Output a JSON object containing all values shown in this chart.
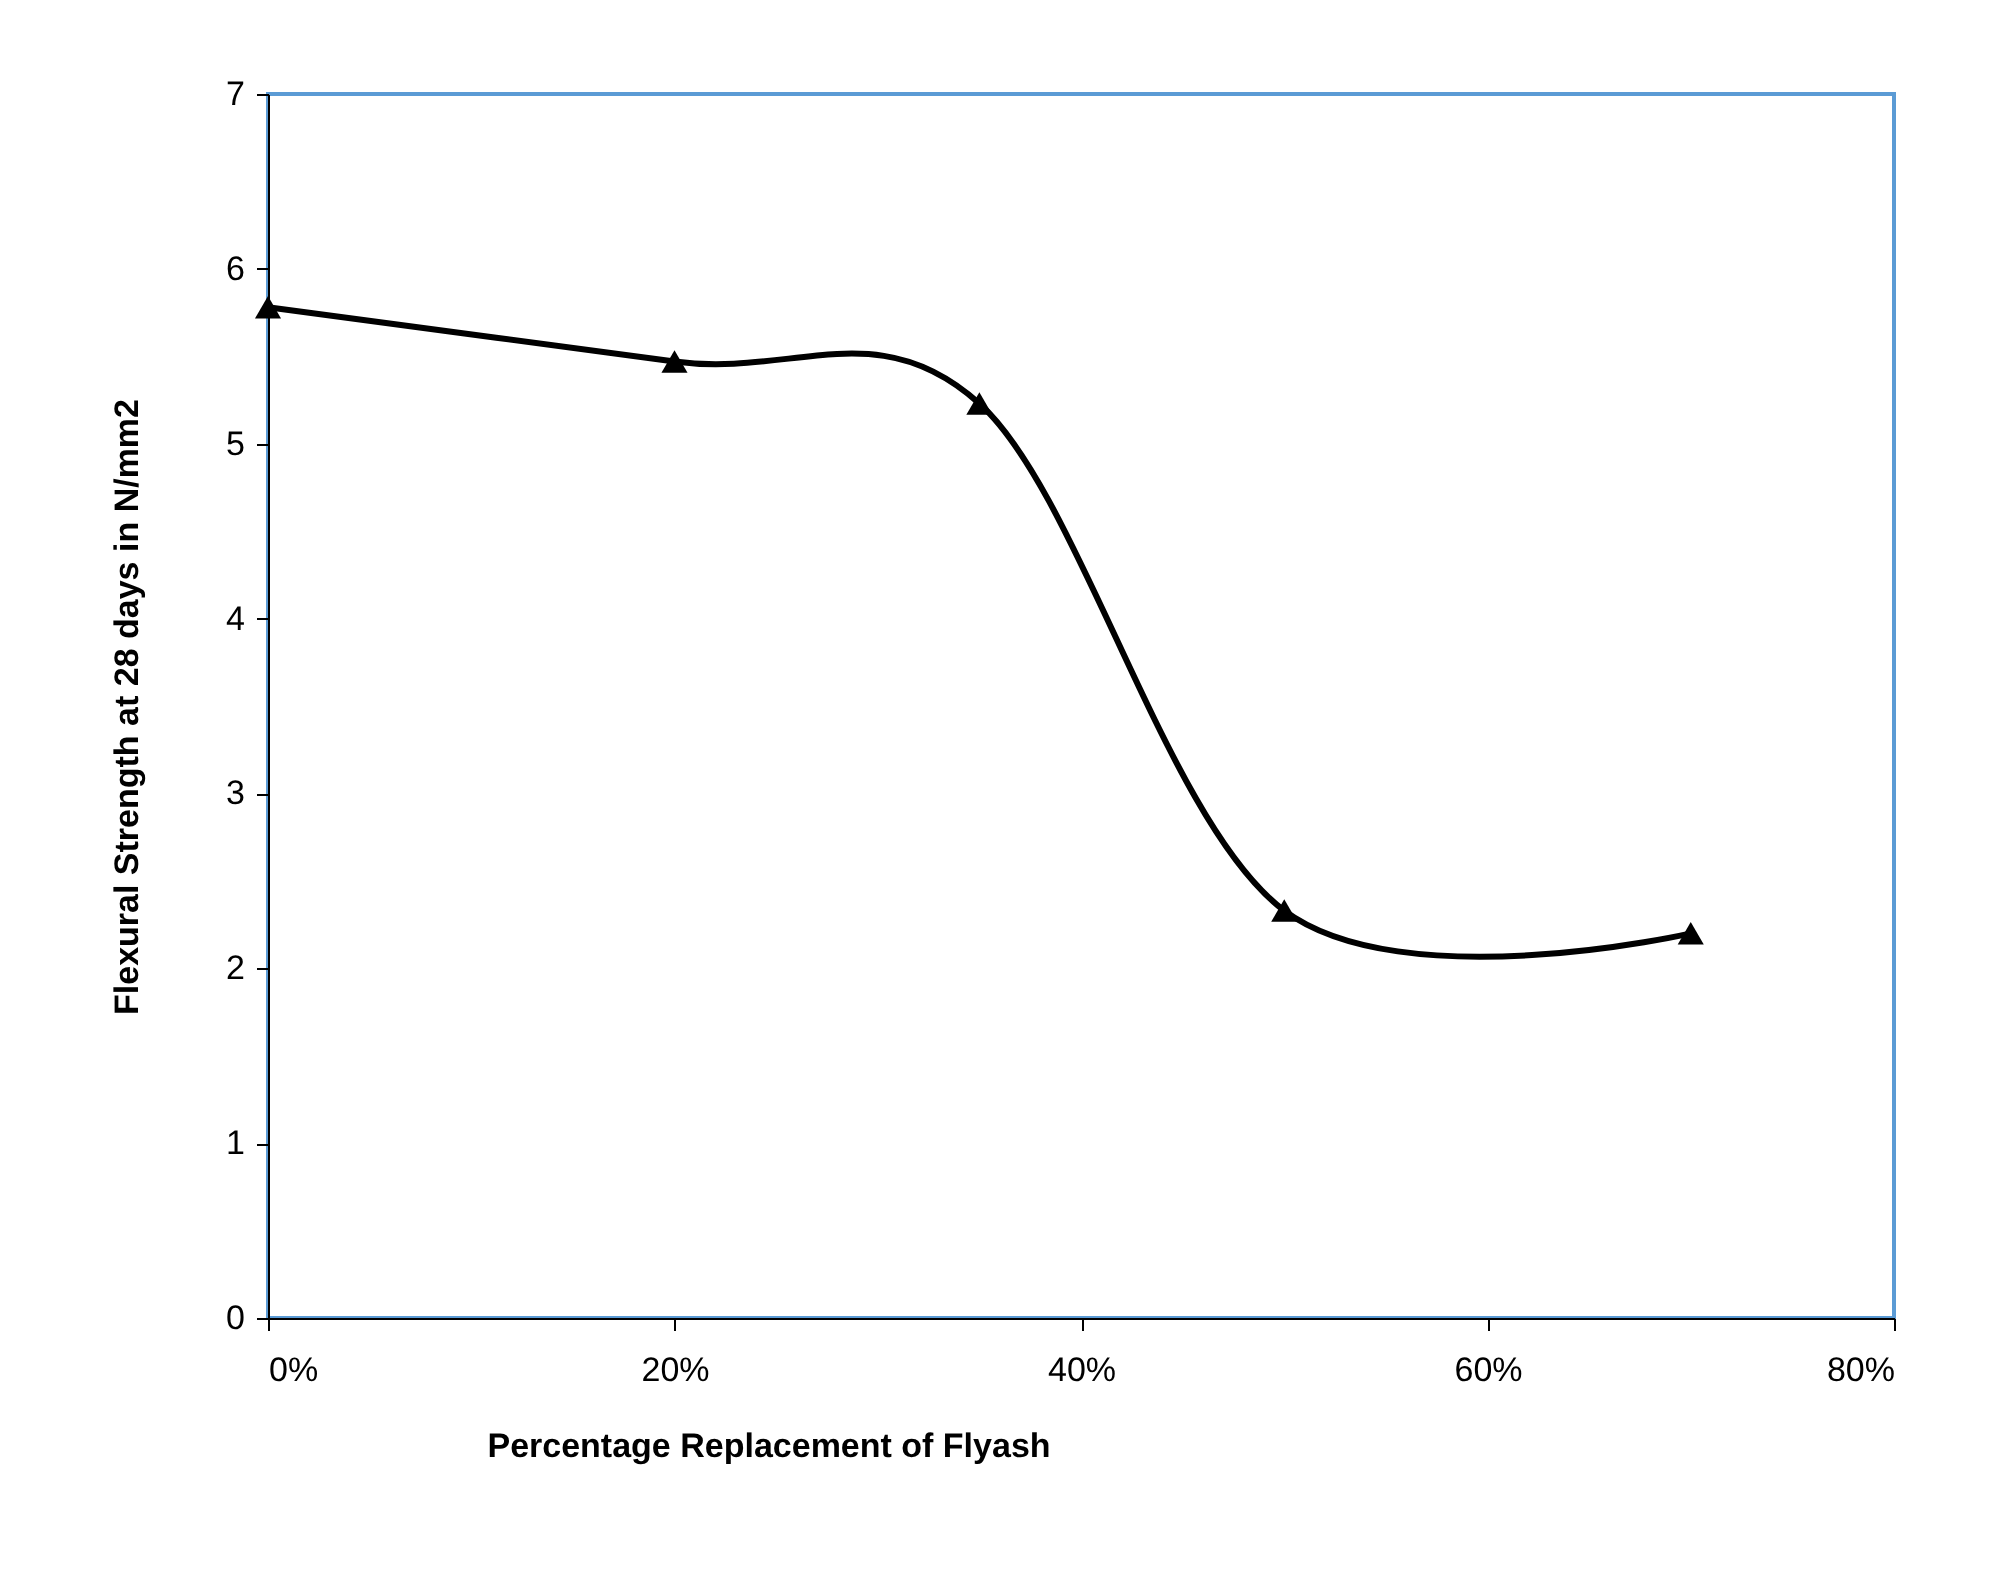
{
  "chart_data": {
    "type": "line",
    "xlabel": "Percentage Replacement of Flyash",
    "ylabel": "Flexural Strength at 28 days in N/mm2",
    "x": [
      0,
      20,
      35,
      50,
      70
    ],
    "series": [
      {
        "color": "#000000",
        "values": [
          5.78,
          5.47,
          5.23,
          2.33,
          2.2
        ]
      }
    ],
    "marker": "triangle",
    "line_style": "solid",
    "grid": false,
    "xlim": [
      0,
      80
    ],
    "xticks": [
      {
        "value": 0,
        "label": "0%"
      },
      {
        "value": 20,
        "label": "20%"
      },
      {
        "value": 40,
        "label": "40%"
      },
      {
        "value": 60,
        "label": "60%"
      },
      {
        "value": 80,
        "label": "80%"
      }
    ],
    "ylim": [
      0,
      7
    ],
    "yticks": [
      0,
      1,
      2,
      3,
      4,
      5,
      6,
      7
    ]
  }
}
